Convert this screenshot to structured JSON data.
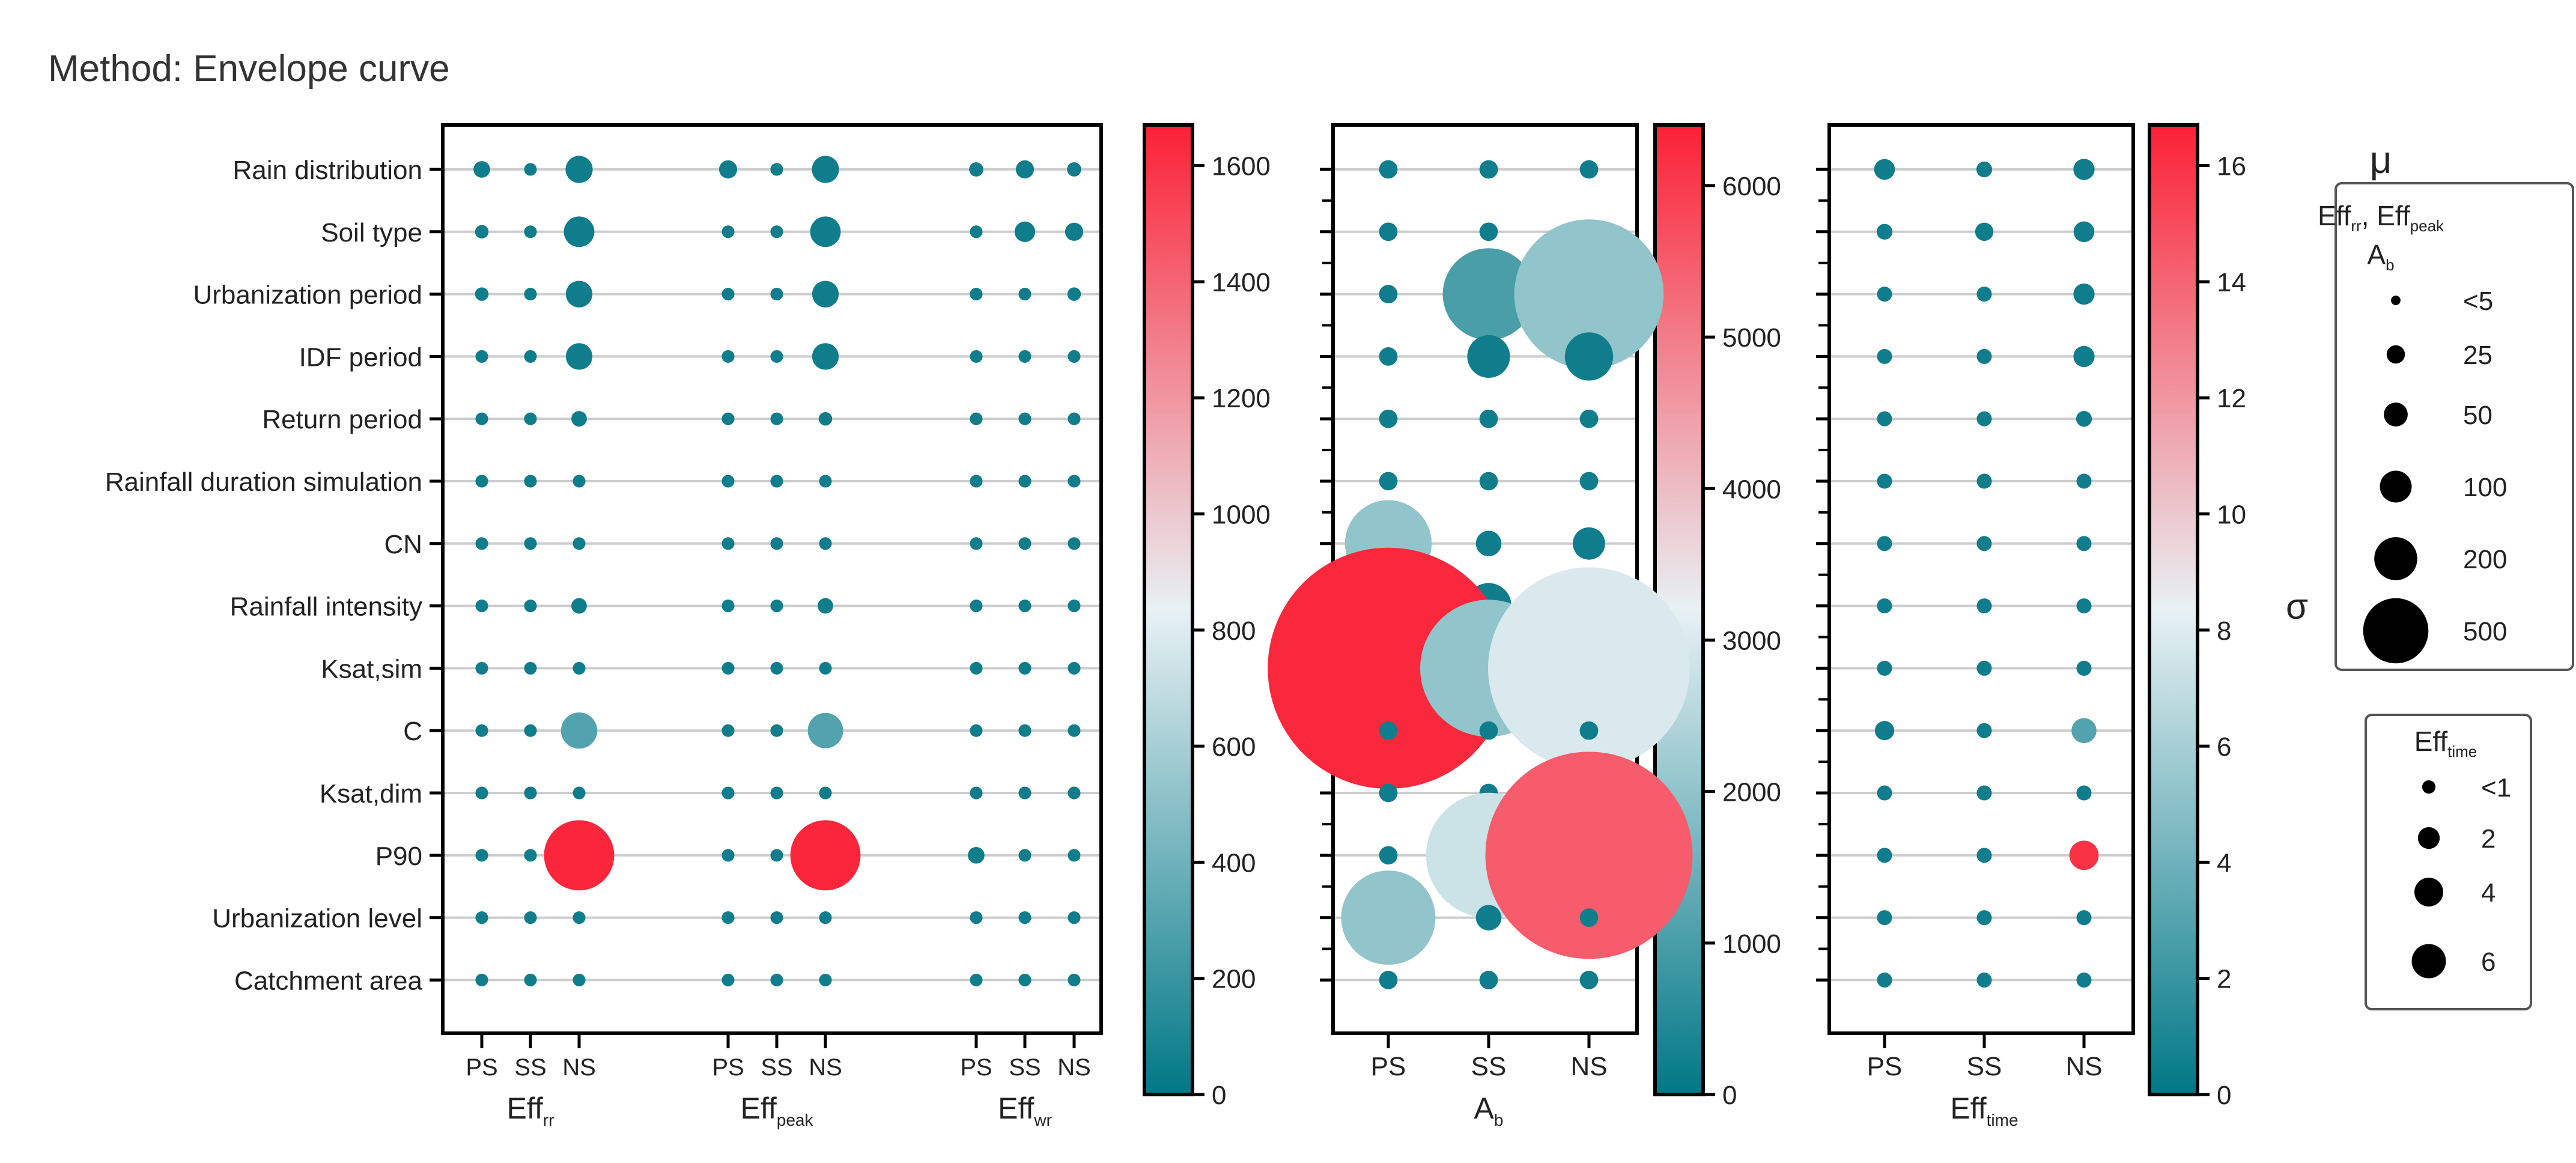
{
  "figure": {
    "title": "Method: Envelope curve",
    "size_unit_label": "μ",
    "color_label": "σ",
    "legend_mu_title_html": "Eff<sub>rr</sub>, Eff<sub>peak</sub>",
    "legend_mu_title_text": "Eff_rr, Eff_peak",
    "legend_mu_sub_text": "A_b",
    "legend_time_title_text": "Eff_time"
  },
  "chart_data": [
    {
      "type": "scatter",
      "chart": "bubble-grid-efficiency-rr-peak-wr",
      "rows": [
        "Rain distribution",
        "Soil type",
        "Urbanization period",
        "IDF period",
        "Return period",
        "Rainfall duration simulation",
        "CN",
        "Rainfall intensity",
        "Ksat,sim",
        "C",
        "Ksat,dim",
        "P90",
        "Urbanization level",
        "Catchment area"
      ],
      "groups": [
        {
          "name": "Eff_rr",
          "label": "Eff",
          "sub": "rr",
          "columns": [
            "PS",
            "SS",
            "NS"
          ]
        },
        {
          "name": "Eff_peak",
          "label": "Eff",
          "sub": "peak",
          "columns": [
            "PS",
            "SS",
            "NS"
          ]
        },
        {
          "name": "Eff_wr",
          "label": "Eff",
          "sub": "wr",
          "columns": [
            "PS",
            "SS",
            "NS"
          ]
        }
      ],
      "mu": [
        [
          9,
          3,
          40,
          12,
          3,
          40,
          5,
          12,
          5
        ],
        [
          4,
          3,
          55,
          3,
          3,
          55,
          3,
          18,
          12
        ],
        [
          4,
          3,
          38,
          3,
          3,
          38,
          3,
          3,
          4
        ],
        [
          3,
          3,
          38,
          3,
          3,
          38,
          3,
          3,
          3
        ],
        [
          3,
          3,
          7,
          3,
          3,
          4,
          3,
          3,
          3
        ],
        [
          3,
          3,
          3,
          3,
          3,
          3,
          3,
          3,
          3
        ],
        [
          3,
          3,
          3,
          3,
          3,
          3,
          3,
          3,
          3
        ],
        [
          3,
          3,
          7,
          3,
          3,
          7,
          3,
          3,
          3
        ],
        [
          3,
          3,
          3,
          3,
          3,
          3,
          3,
          3,
          3
        ],
        [
          3,
          3,
          85,
          3,
          3,
          80,
          3,
          3,
          3
        ],
        [
          3,
          3,
          3,
          3,
          3,
          3,
          3,
          3,
          3
        ],
        [
          3,
          3,
          400,
          3,
          3,
          400,
          9,
          3,
          3
        ],
        [
          3,
          3,
          3,
          3,
          3,
          3,
          3,
          3,
          3
        ],
        [
          3,
          3,
          3,
          3,
          3,
          3,
          3,
          3,
          3
        ]
      ],
      "sigma": [
        [
          0,
          0,
          0,
          0,
          0,
          0,
          0,
          0,
          0
        ],
        [
          0,
          0,
          0,
          0,
          0,
          0,
          0,
          0,
          0
        ],
        [
          0,
          0,
          0,
          0,
          0,
          0,
          0,
          0,
          0
        ],
        [
          0,
          0,
          0,
          0,
          0,
          0,
          0,
          0,
          0
        ],
        [
          0,
          0,
          0,
          0,
          0,
          0,
          0,
          0,
          0
        ],
        [
          0,
          0,
          0,
          0,
          0,
          0,
          0,
          0,
          0
        ],
        [
          0,
          0,
          0,
          0,
          0,
          0,
          0,
          0,
          0
        ],
        [
          0,
          0,
          0,
          0,
          0,
          0,
          0,
          0,
          0
        ],
        [
          0,
          0,
          0,
          0,
          0,
          0,
          0,
          0,
          0
        ],
        [
          0,
          0,
          300,
          0,
          0,
          300,
          0,
          0,
          0
        ],
        [
          0,
          0,
          0,
          0,
          0,
          0,
          0,
          0,
          0
        ],
        [
          0,
          0,
          1650,
          0,
          0,
          1650,
          0,
          0,
          0
        ],
        [
          0,
          0,
          0,
          0,
          0,
          0,
          0,
          0,
          0
        ],
        [
          0,
          0,
          0,
          0,
          0,
          0,
          0,
          0,
          0
        ]
      ],
      "colorbar": {
        "min": 0,
        "max": 1670,
        "ticks": [
          0,
          200,
          400,
          600,
          800,
          1000,
          1200,
          1400,
          1600
        ],
        "tick_labels": [
          "0",
          "200",
          "400",
          "600",
          "800",
          "1000",
          "1200",
          "1400",
          "1600"
        ]
      }
    },
    {
      "type": "scatter",
      "chart": "bubble-grid-ab",
      "groups": [
        {
          "name": "A_b",
          "label": "A",
          "sub": "b",
          "columns": [
            "PS",
            "SS",
            "NS"
          ]
        }
      ],
      "mu": [
        [
          3,
          3,
          3
        ],
        [
          3,
          3,
          3
        ],
        [
          3,
          170,
          480
        ],
        [
          3,
          30,
          40
        ],
        [
          3,
          3,
          3
        ],
        [
          3,
          3,
          3
        ],
        [
          150,
          8,
          15
        ],
        [
          3,
          35,
          50
        ],
        [
          1300,
          400,
          900
        ],
        [
          3,
          3,
          3
        ],
        [
          3,
          3,
          3
        ],
        [
          3,
          330,
          950
        ],
        [
          180,
          8,
          3
        ],
        [
          3,
          3,
          3
        ]
      ],
      "sigma": [
        [
          0,
          0,
          0
        ],
        [
          0,
          0,
          0
        ],
        [
          0,
          1000,
          2000
        ],
        [
          0,
          0,
          0
        ],
        [
          0,
          0,
          0
        ],
        [
          0,
          0,
          0
        ],
        [
          2000,
          0,
          0
        ],
        [
          0,
          0,
          0
        ],
        [
          6300,
          2000,
          3000
        ],
        [
          0,
          0,
          0
        ],
        [
          0,
          0,
          0
        ],
        [
          0,
          2800,
          5500
        ],
        [
          2000,
          0,
          0
        ],
        [
          0,
          0,
          0
        ]
      ],
      "colorbar": {
        "min": 0,
        "max": 6400,
        "ticks": [
          0,
          1000,
          2000,
          3000,
          4000,
          5000,
          6000
        ],
        "tick_labels": [
          "0",
          "1000",
          "2000",
          "3000",
          "4000",
          "5000",
          "6000"
        ]
      }
    },
    {
      "type": "scatter",
      "chart": "bubble-grid-time",
      "groups": [
        {
          "name": "Eff_time",
          "label": "Eff",
          "sub": "time",
          "columns": [
            "PS",
            "SS",
            "NS"
          ]
        }
      ],
      "mu": [
        [
          1.5,
          0.6,
          1.6
        ],
        [
          0.6,
          1.0,
          1.5
        ],
        [
          0.5,
          0.5,
          1.6
        ],
        [
          0.5,
          0.5,
          1.6
        ],
        [
          0.5,
          0.5,
          0.6
        ],
        [
          0.5,
          0.5,
          0.5
        ],
        [
          0.5,
          0.5,
          0.5
        ],
        [
          0.5,
          0.5,
          0.5
        ],
        [
          0.5,
          0.5,
          0.5
        ],
        [
          1.2,
          0.5,
          2.6
        ],
        [
          0.5,
          0.5,
          0.5
        ],
        [
          0.5,
          0.5,
          4.0
        ],
        [
          0.5,
          0.5,
          0.5
        ],
        [
          0.5,
          0.5,
          0.5
        ]
      ],
      "sigma": [
        [
          0,
          0,
          0
        ],
        [
          0,
          0,
          0
        ],
        [
          0,
          0,
          0
        ],
        [
          0,
          0,
          0
        ],
        [
          0,
          0,
          0
        ],
        [
          0,
          0,
          0
        ],
        [
          0,
          0,
          0
        ],
        [
          0,
          0,
          0
        ],
        [
          0,
          0,
          0
        ],
        [
          0,
          0,
          3
        ],
        [
          0,
          0,
          0
        ],
        [
          0,
          0,
          16
        ],
        [
          0,
          0,
          0
        ],
        [
          0,
          0,
          0
        ]
      ],
      "colorbar": {
        "min": 0,
        "max": 16.7,
        "ticks": [
          0,
          2,
          4,
          6,
          8,
          10,
          12,
          14,
          16
        ],
        "tick_labels": [
          "0",
          "2",
          "4",
          "6",
          "8",
          "10",
          "12",
          "14",
          "16"
        ]
      }
    }
  ],
  "legends": {
    "mu_sizes": [
      {
        "label": "<5",
        "value": 3
      },
      {
        "label": "25",
        "value": 25
      },
      {
        "label": "50",
        "value": 50
      },
      {
        "label": "100",
        "value": 100
      },
      {
        "label": "200",
        "value": 200
      },
      {
        "label": "500",
        "value": 500
      }
    ],
    "time_sizes": [
      {
        "label": "<1",
        "value": 0.5
      },
      {
        "label": "2",
        "value": 2
      },
      {
        "label": "4",
        "value": 4
      },
      {
        "label": "6",
        "value": 6
      }
    ]
  },
  "colors": {
    "low": "#007886",
    "mid": "#e8f1f4",
    "high": "#fb2136",
    "grid": "#cccccc",
    "text": "#222222",
    "dot": "#0f7d8c"
  }
}
